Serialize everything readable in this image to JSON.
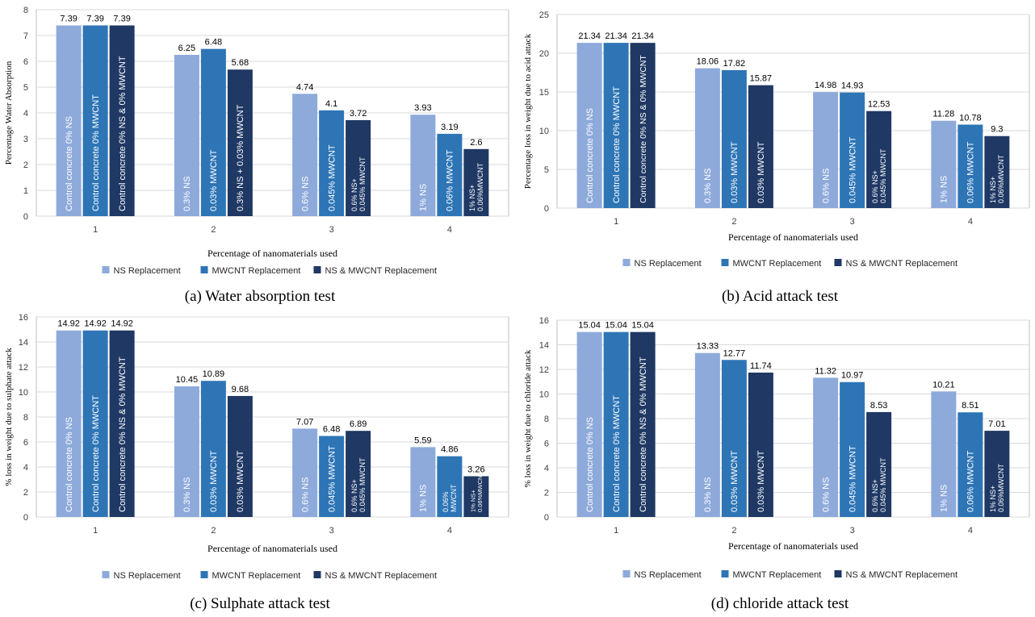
{
  "legend_labels": [
    "NS Replacement",
    "MWCNT Replacement",
    "NS & MWCNT Replacement"
  ],
  "colors": {
    "ns": "#8eaadb",
    "mwcnt": "#2e75b6",
    "combo": "#1f3864",
    "grid": "#d9d9d9",
    "axis": "#bfbfbf"
  },
  "chart_data": [
    {
      "type": "bar",
      "caption": "(a) Water absorption test",
      "xlabel": "Percentage of nanomaterials used",
      "ylabel": "Percentage Water Absorption",
      "ylim": [
        0,
        8
      ],
      "yticks": [
        0,
        1,
        2,
        3,
        4,
        5,
        6,
        7,
        8
      ],
      "categories": [
        "1",
        "2",
        "3",
        "4"
      ],
      "grid": true,
      "legend": "bottom",
      "series": [
        {
          "name": "NS Replacement",
          "values": [
            7.39,
            6.25,
            4.74,
            3.93
          ],
          "bar_labels": [
            "Control concrete 0% NS",
            "0.3% NS",
            "0.6% NS",
            "1% NS"
          ]
        },
        {
          "name": "MWCNT Replacement",
          "values": [
            7.39,
            6.48,
            4.1,
            3.19
          ],
          "bar_labels": [
            "Control concrete 0% MWCNT",
            "0.03% MWCNT",
            "0.045% MWCNT",
            "0.06% MWCNT"
          ]
        },
        {
          "name": "NS & MWCNT Replacement",
          "values": [
            7.39,
            5.68,
            3.72,
            2.6
          ],
          "bar_labels": [
            "Control concrete 0% NS & 0% MWCNT",
            "0.3% NS + 0.03% MWCNT",
            "0.6% NS+|0.045% MWCNT",
            "1% NS+|0.06%MWCNT"
          ]
        }
      ]
    },
    {
      "type": "bar",
      "caption": "(b) Acid attack test",
      "xlabel": "Percentage of nanomaterials used",
      "ylabel": "Percentage loss in weight due to acid attack",
      "ylim": [
        0,
        25
      ],
      "yticks": [
        0,
        5,
        10,
        15,
        20,
        25
      ],
      "categories": [
        "1",
        "2",
        "3",
        "4"
      ],
      "grid": true,
      "legend": "bottom",
      "series": [
        {
          "name": "NS Replacement",
          "values": [
            21.34,
            18.06,
            14.98,
            11.28
          ],
          "bar_labels": [
            "Control concrete 0% NS",
            "0.3% NS",
            "0.6% NS",
            "1% NS"
          ]
        },
        {
          "name": "MWCNT Replacement",
          "values": [
            21.34,
            17.82,
            14.93,
            10.78
          ],
          "bar_labels": [
            "Control concrete 0% MWCNT",
            "0.03% MWCNT",
            "0.045% MWCNT",
            "0.06% MWCNT"
          ]
        },
        {
          "name": "NS & MWCNT Replacement",
          "values": [
            21.34,
            15.87,
            12.53,
            9.3
          ],
          "bar_labels": [
            "Control concrete 0% NS & 0% MWCNT",
            "0.03% MWCNT",
            "0.6% NS+|0.045% MWCNT",
            "1% NS+|0.06%MWCNT"
          ]
        }
      ]
    },
    {
      "type": "bar",
      "caption": "(c) Sulphate attack test",
      "xlabel": "Percentage of nanomaterials used",
      "ylabel": "% loss in weight due to sulphate attack",
      "ylim": [
        0,
        16
      ],
      "yticks": [
        0,
        2,
        4,
        6,
        8,
        10,
        12,
        14,
        16
      ],
      "categories": [
        "1",
        "2",
        "3",
        "4"
      ],
      "grid": true,
      "legend": "bottom",
      "series": [
        {
          "name": "NS Replacement",
          "values": [
            14.92,
            10.45,
            7.07,
            5.59
          ],
          "bar_labels": [
            "Control concrete 0% NS",
            "0.3% NS",
            "0.6% NS",
            "1% NS"
          ]
        },
        {
          "name": "MWCNT Replacement",
          "values": [
            14.92,
            10.89,
            6.48,
            4.86
          ],
          "bar_labels": [
            "Control concrete 0% MWCNT",
            "0.03% MWCNT",
            "0.045% MWCNT",
            "0.06%|MWCNT"
          ]
        },
        {
          "name": "NS & MWCNT Replacement",
          "values": [
            14.92,
            9.68,
            6.89,
            3.26
          ],
          "bar_labels": [
            "Control concrete 0% NS & 0% MWCNT",
            "0.03% MWCNT",
            "0.6% NS+|0.045% MWCNT",
            "1% NS+|0.06%MWCNT"
          ]
        }
      ]
    },
    {
      "type": "bar",
      "caption": "(d) chloride attack test",
      "xlabel": "Percentage of nanomaterials used",
      "ylabel": "% loss in weight due to chloride attack",
      "ylim": [
        0,
        16
      ],
      "yticks": [
        0,
        2,
        4,
        6,
        8,
        10,
        12,
        14,
        16
      ],
      "categories": [
        "1",
        "2",
        "3",
        "4"
      ],
      "grid": true,
      "legend": "bottom",
      "series": [
        {
          "name": "NS Replacement",
          "values": [
            15.04,
            13.33,
            11.32,
            10.21
          ],
          "bar_labels": [
            "Control concrete 0% NS",
            "0.3% NS",
            "0.6% NS",
            "1% NS"
          ]
        },
        {
          "name": "MWCNT Replacement",
          "values": [
            15.04,
            12.77,
            10.97,
            8.51
          ],
          "bar_labels": [
            "Control concrete 0% MWCNT",
            "0.03% MWCNT",
            "0.045% MWCNT",
            "0.06% MWCNT"
          ]
        },
        {
          "name": "NS & MWCNT Replacement",
          "values": [
            15.04,
            11.74,
            8.53,
            7.01
          ],
          "bar_labels": [
            "Control concrete 0% NS & 0% MWCNT",
            "0.03% MWCNT",
            "0.6% NS+|0.045% MWCNT",
            "1% NS+|0.06%MWCNT"
          ]
        }
      ]
    }
  ]
}
